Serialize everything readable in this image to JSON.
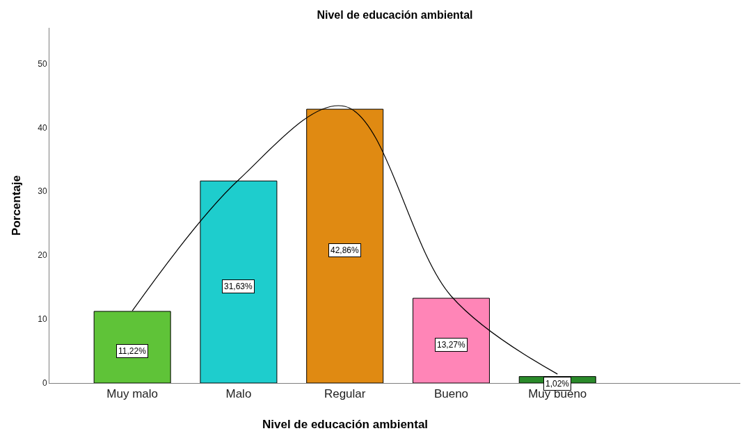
{
  "chart_data": {
    "type": "bar",
    "title": "Nivel de educación ambiental",
    "xlabel": "Nivel de educación ambiental",
    "ylabel": "Porcentaje",
    "categories": [
      "Muy malo",
      "Malo",
      "Regular",
      "Bueno",
      "Muy bueno"
    ],
    "ylim": [
      0,
      55.6
    ],
    "yticks": [
      0,
      10,
      20,
      30,
      40,
      50
    ],
    "grid": false,
    "series": [
      {
        "colors": [
          "#5fc338",
          "#1ecdcd",
          "#e08a12",
          "#ff85b7",
          "#2a8a2a"
        ],
        "values": [
          11.22,
          31.63,
          42.86,
          13.27,
          1.02
        ],
        "value_labels": [
          "11,22%",
          "31,63%",
          "42,86%",
          "13,27%",
          "1,02%"
        ]
      },
      {
        "type": "line",
        "color": "#000000",
        "values": [
          11.3,
          31.8,
          43.3,
          13.6,
          1.4
        ]
      }
    ]
  }
}
